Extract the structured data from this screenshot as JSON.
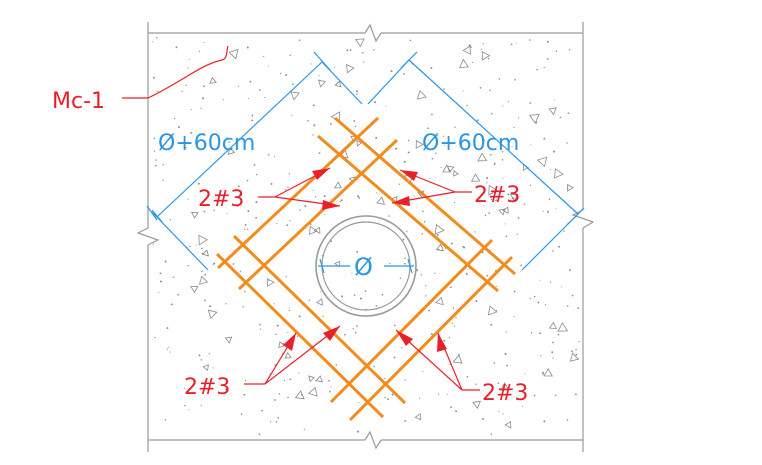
{
  "labels": {
    "mark": "Mc-1",
    "dim_left": "Ø+60cm",
    "dim_right": "Ø+60cm",
    "diameter": "Ø",
    "bars_upper_left": "2#3",
    "bars_upper_right": "2#3",
    "bars_lower_left": "2#3",
    "bars_lower_right": "2#3"
  },
  "colors": {
    "rebar": "#f28c1e",
    "annotation": "#e8202a",
    "dimension": "#2a97e0",
    "outline": "#9a9a9a",
    "concrete_speckle": "#8a8a8a"
  }
}
